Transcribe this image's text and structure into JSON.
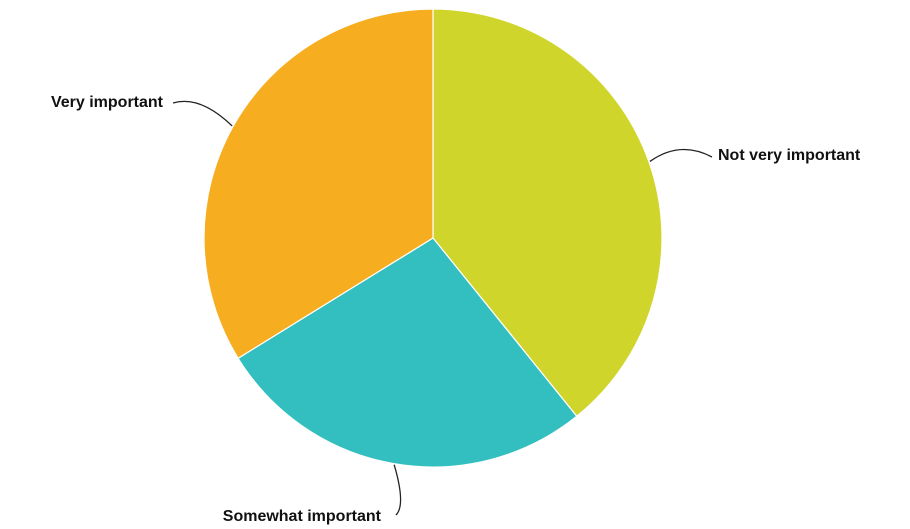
{
  "chart_data": {
    "type": "pie",
    "title": "",
    "start_angle_deg": 0,
    "direction": "clockwise",
    "slices": [
      {
        "label": "Not very important",
        "value": 39.2,
        "color": "#CFD52A"
      },
      {
        "label": "Somewhat important",
        "value": 27.0,
        "color": "#33BEBF"
      },
      {
        "label": "Very important",
        "value": 33.8,
        "color": "#F6AE20"
      }
    ],
    "legend": "none",
    "labels": "outside-with-leader-lines"
  }
}
